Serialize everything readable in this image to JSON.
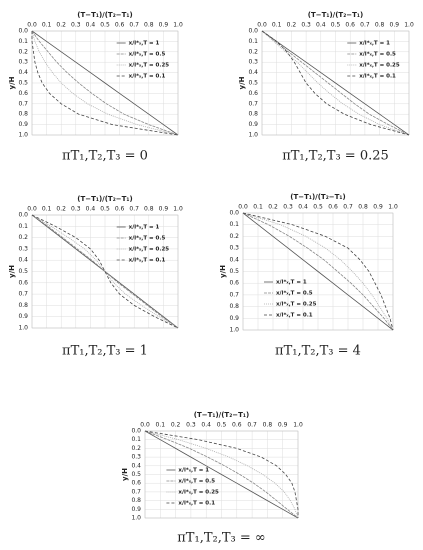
{
  "chart_data": [
    {
      "type": "line",
      "title": "πT₁,T₂,T₃ = 0",
      "xlabel": "(T−T₁)/(T₂−T₁)",
      "ylabel": "y/H",
      "legend": "upper right",
      "grid": true,
      "y_inverted": true,
      "xlim": [
        0,
        1
      ],
      "ylim": [
        0,
        1
      ],
      "xticks": [
        {
          "value": 0,
          "label": "0.0"
        },
        0.1,
        0.2,
        0.3,
        0.4,
        0.5,
        0.6,
        0.7,
        0.8,
        0.9,
        {
          "value": 1,
          "label": "1.0"
        }
      ],
      "yticks": [
        {
          "value": 0,
          "label": "0.0"
        },
        0.1,
        0.2,
        0.3,
        0.4,
        0.5,
        0.6,
        0.7,
        0.8,
        0.9,
        {
          "value": 1,
          "label": "1.0"
        }
      ],
      "y": [
        0,
        0.1,
        0.2,
        0.3,
        0.4,
        0.5,
        0.6,
        0.7,
        0.8,
        0.9,
        1
      ],
      "series": [
        {
          "name": "x/l*ₓ,T = 1",
          "color": "#555555",
          "dash": "none",
          "values": [
            0,
            0.1,
            0.2,
            0.3,
            0.4,
            0.5,
            0.6,
            0.7,
            0.8,
            0.9,
            1
          ]
        },
        {
          "name": "x/l*ₓ,T = 0.5",
          "color": "#888888",
          "dash": "3,1",
          "values": [
            0,
            0.05,
            0.11,
            0.17,
            0.24,
            0.32,
            0.41,
            0.51,
            0.63,
            0.8,
            1
          ]
        },
        {
          "name": "x/l*ₓ,T = 0.25",
          "color": "#aaaaaa",
          "dash": "1,1",
          "values": [
            0,
            0.02,
            0.05,
            0.09,
            0.14,
            0.2,
            0.28,
            0.38,
            0.52,
            0.72,
            1
          ]
        },
        {
          "name": "x/l*ₓ,T = 0.1",
          "color": "#444444",
          "dash": "3,2",
          "values": [
            0,
            0,
            0.01,
            0.02,
            0.04,
            0.07,
            0.12,
            0.2,
            0.32,
            0.55,
            1
          ]
        }
      ]
    },
    {
      "type": "line",
      "title": "πT₁,T₂,T₃ = 0.25",
      "xlabel": "(T−T₁)/(T₂−T₁)",
      "ylabel": "y/H",
      "legend": "upper right",
      "grid": true,
      "y_inverted": true,
      "xlim": [
        0,
        1
      ],
      "ylim": [
        0,
        1
      ],
      "xticks": [
        {
          "value": 0,
          "label": "0.0"
        },
        0.1,
        0.2,
        0.3,
        0.4,
        0.5,
        0.6,
        0.7,
        0.8,
        0.9,
        {
          "value": 1,
          "label": "1.0"
        }
      ],
      "yticks": [
        {
          "value": 0,
          "label": "0.0"
        },
        0.1,
        0.2,
        0.3,
        0.4,
        0.5,
        0.6,
        0.7,
        0.8,
        0.9,
        {
          "value": 1,
          "label": "1.0"
        }
      ],
      "y": [
        0,
        0.1,
        0.2,
        0.3,
        0.4,
        0.5,
        0.6,
        0.7,
        0.8,
        0.9,
        1
      ],
      "series": [
        {
          "name": "x/l*ₓ,T = 1",
          "color": "#555555",
          "dash": "none",
          "values": [
            0,
            0.1,
            0.2,
            0.3,
            0.4,
            0.5,
            0.6,
            0.7,
            0.8,
            0.9,
            1
          ]
        },
        {
          "name": "x/l*ₓ,T = 0.5",
          "color": "#888888",
          "dash": "3,1",
          "values": [
            0,
            0.09,
            0.18,
            0.27,
            0.36,
            0.45,
            0.54,
            0.63,
            0.73,
            0.86,
            1
          ]
        },
        {
          "name": "x/l*ₓ,T = 0.25",
          "color": "#aaaaaa",
          "dash": "1,1",
          "values": [
            0,
            0.08,
            0.16,
            0.24,
            0.31,
            0.38,
            0.46,
            0.55,
            0.66,
            0.8,
            1
          ]
        },
        {
          "name": "x/l*ₓ,T = 0.1",
          "color": "#444444",
          "dash": "3,2",
          "values": [
            0,
            0.1,
            0.17,
            0.22,
            0.26,
            0.3,
            0.36,
            0.44,
            0.56,
            0.74,
            1
          ]
        }
      ]
    },
    {
      "type": "line",
      "title": "πT₁,T₂,T₃ = 1",
      "xlabel": "(T−T₁)/(T₂−T₁)",
      "ylabel": "y/H",
      "legend": "upper right",
      "grid": true,
      "y_inverted": true,
      "xlim": [
        0,
        1
      ],
      "ylim": [
        0,
        1
      ],
      "xticks": [
        {
          "value": 0,
          "label": "0.0"
        },
        0.1,
        0.2,
        0.3,
        0.4,
        0.5,
        0.6,
        0.7,
        0.8,
        0.9,
        {
          "value": 1,
          "label": "1.0"
        }
      ],
      "yticks": [
        {
          "value": 0,
          "label": "0.0"
        },
        0.1,
        0.2,
        0.3,
        0.4,
        0.5,
        0.6,
        0.7,
        0.8,
        0.9,
        {
          "value": 1,
          "label": "1.0"
        }
      ],
      "y": [
        0,
        0.1,
        0.2,
        0.3,
        0.4,
        0.5,
        0.6,
        0.7,
        0.8,
        0.9,
        1
      ],
      "series": [
        {
          "name": "x/l*ₓ,T = 1",
          "color": "#555555",
          "dash": "none",
          "values": [
            0,
            0.1,
            0.2,
            0.3,
            0.4,
            0.5,
            0.6,
            0.7,
            0.8,
            0.9,
            1
          ]
        },
        {
          "name": "x/l*ₓ,T = 0.5",
          "color": "#888888",
          "dash": "3,1",
          "values": [
            0,
            0.11,
            0.21,
            0.31,
            0.41,
            0.5,
            0.59,
            0.69,
            0.79,
            0.89,
            1
          ]
        },
        {
          "name": "x/l*ₓ,T = 0.25",
          "color": "#aaaaaa",
          "dash": "1,1",
          "values": [
            0,
            0.13,
            0.25,
            0.36,
            0.44,
            0.5,
            0.56,
            0.64,
            0.75,
            0.87,
            1
          ]
        },
        {
          "name": "x/l*ₓ,T = 0.1",
          "color": "#444444",
          "dash": "3,2",
          "values": [
            0,
            0.16,
            0.3,
            0.4,
            0.46,
            0.5,
            0.54,
            0.6,
            0.7,
            0.84,
            1
          ]
        }
      ]
    },
    {
      "type": "line",
      "title": "πT₁,T₂,T₃ = 4",
      "xlabel": "(T−T₁)/(T₂−T₁)",
      "ylabel": "y/H",
      "legend": "lower left",
      "grid": true,
      "y_inverted": true,
      "xlim": [
        0,
        1
      ],
      "ylim": [
        0,
        1
      ],
      "xticks": [
        {
          "value": 0,
          "label": "0.0"
        },
        0.1,
        0.2,
        0.3,
        0.4,
        0.5,
        0.6,
        0.7,
        0.8,
        0.9,
        {
          "value": 1,
          "label": "1.0"
        }
      ],
      "yticks": [
        {
          "value": 0,
          "label": "0.0"
        },
        0.1,
        0.2,
        0.3,
        0.4,
        0.5,
        0.6,
        0.7,
        0.8,
        0.9,
        {
          "value": 1,
          "label": "1.0"
        }
      ],
      "y": [
        0,
        0.1,
        0.2,
        0.3,
        0.4,
        0.5,
        0.6,
        0.7,
        0.8,
        0.9,
        1
      ],
      "series": [
        {
          "name": "x/l*ₓ,T = 1",
          "color": "#555555",
          "dash": "none",
          "values": [
            0,
            0.1,
            0.2,
            0.3,
            0.4,
            0.5,
            0.6,
            0.7,
            0.8,
            0.9,
            1
          ]
        },
        {
          "name": "x/l*ₓ,T = 0.5",
          "color": "#888888",
          "dash": "3,1",
          "values": [
            0,
            0.17,
            0.31,
            0.43,
            0.54,
            0.63,
            0.72,
            0.8,
            0.87,
            0.94,
            1
          ]
        },
        {
          "name": "x/l*ₓ,T = 0.25",
          "color": "#aaaaaa",
          "dash": "1,1",
          "values": [
            0,
            0.25,
            0.42,
            0.55,
            0.65,
            0.73,
            0.8,
            0.86,
            0.91,
            0.96,
            1
          ]
        },
        {
          "name": "x/l*ₓ,T = 0.1",
          "color": "#444444",
          "dash": "3,2",
          "values": [
            0,
            0.33,
            0.55,
            0.7,
            0.78,
            0.84,
            0.88,
            0.92,
            0.95,
            0.98,
            1
          ]
        }
      ]
    },
    {
      "type": "line",
      "title": "πT₁,T₂,T₃ = ∞",
      "xlabel": "(T−T₁)/(T₂−T₁)",
      "ylabel": "y/H",
      "legend": "lower left",
      "grid": true,
      "y_inverted": true,
      "xlim": [
        0,
        1
      ],
      "ylim": [
        0,
        1
      ],
      "xticks": [
        {
          "value": 0,
          "label": "0.0"
        },
        0.1,
        0.2,
        0.3,
        0.4,
        0.5,
        0.6,
        0.7,
        0.8,
        0.9,
        {
          "value": 1,
          "label": "1.0"
        }
      ],
      "yticks": [
        {
          "value": 0,
          "label": "0.0"
        },
        0.1,
        0.2,
        0.3,
        0.4,
        0.5,
        0.6,
        0.7,
        0.8,
        0.9,
        {
          "value": 1,
          "label": "1.0"
        }
      ],
      "y": [
        0,
        0.1,
        0.2,
        0.3,
        0.4,
        0.5,
        0.6,
        0.7,
        0.8,
        0.9,
        1
      ],
      "series": [
        {
          "name": "x/l*ₓ,T = 1",
          "color": "#555555",
          "dash": "none",
          "values": [
            0,
            0.1,
            0.2,
            0.3,
            0.4,
            0.5,
            0.6,
            0.7,
            0.8,
            0.9,
            1
          ]
        },
        {
          "name": "x/l*ₓ,T = 0.5",
          "color": "#888888",
          "dash": "3,1",
          "values": [
            0,
            0.15,
            0.29,
            0.41,
            0.52,
            0.62,
            0.71,
            0.79,
            0.86,
            0.93,
            1
          ]
        },
        {
          "name": "x/l*ₓ,T = 0.25",
          "color": "#aaaaaa",
          "dash": "1,1",
          "values": [
            0,
            0.22,
            0.4,
            0.55,
            0.67,
            0.77,
            0.85,
            0.91,
            0.95,
            0.98,
            1
          ]
        },
        {
          "name": "x/l*ₓ,T = 0.1",
          "color": "#444444",
          "dash": "3,2",
          "values": [
            0,
            0.35,
            0.6,
            0.76,
            0.86,
            0.92,
            0.96,
            0.98,
            0.99,
            1,
            1
          ]
        }
      ]
    }
  ]
}
